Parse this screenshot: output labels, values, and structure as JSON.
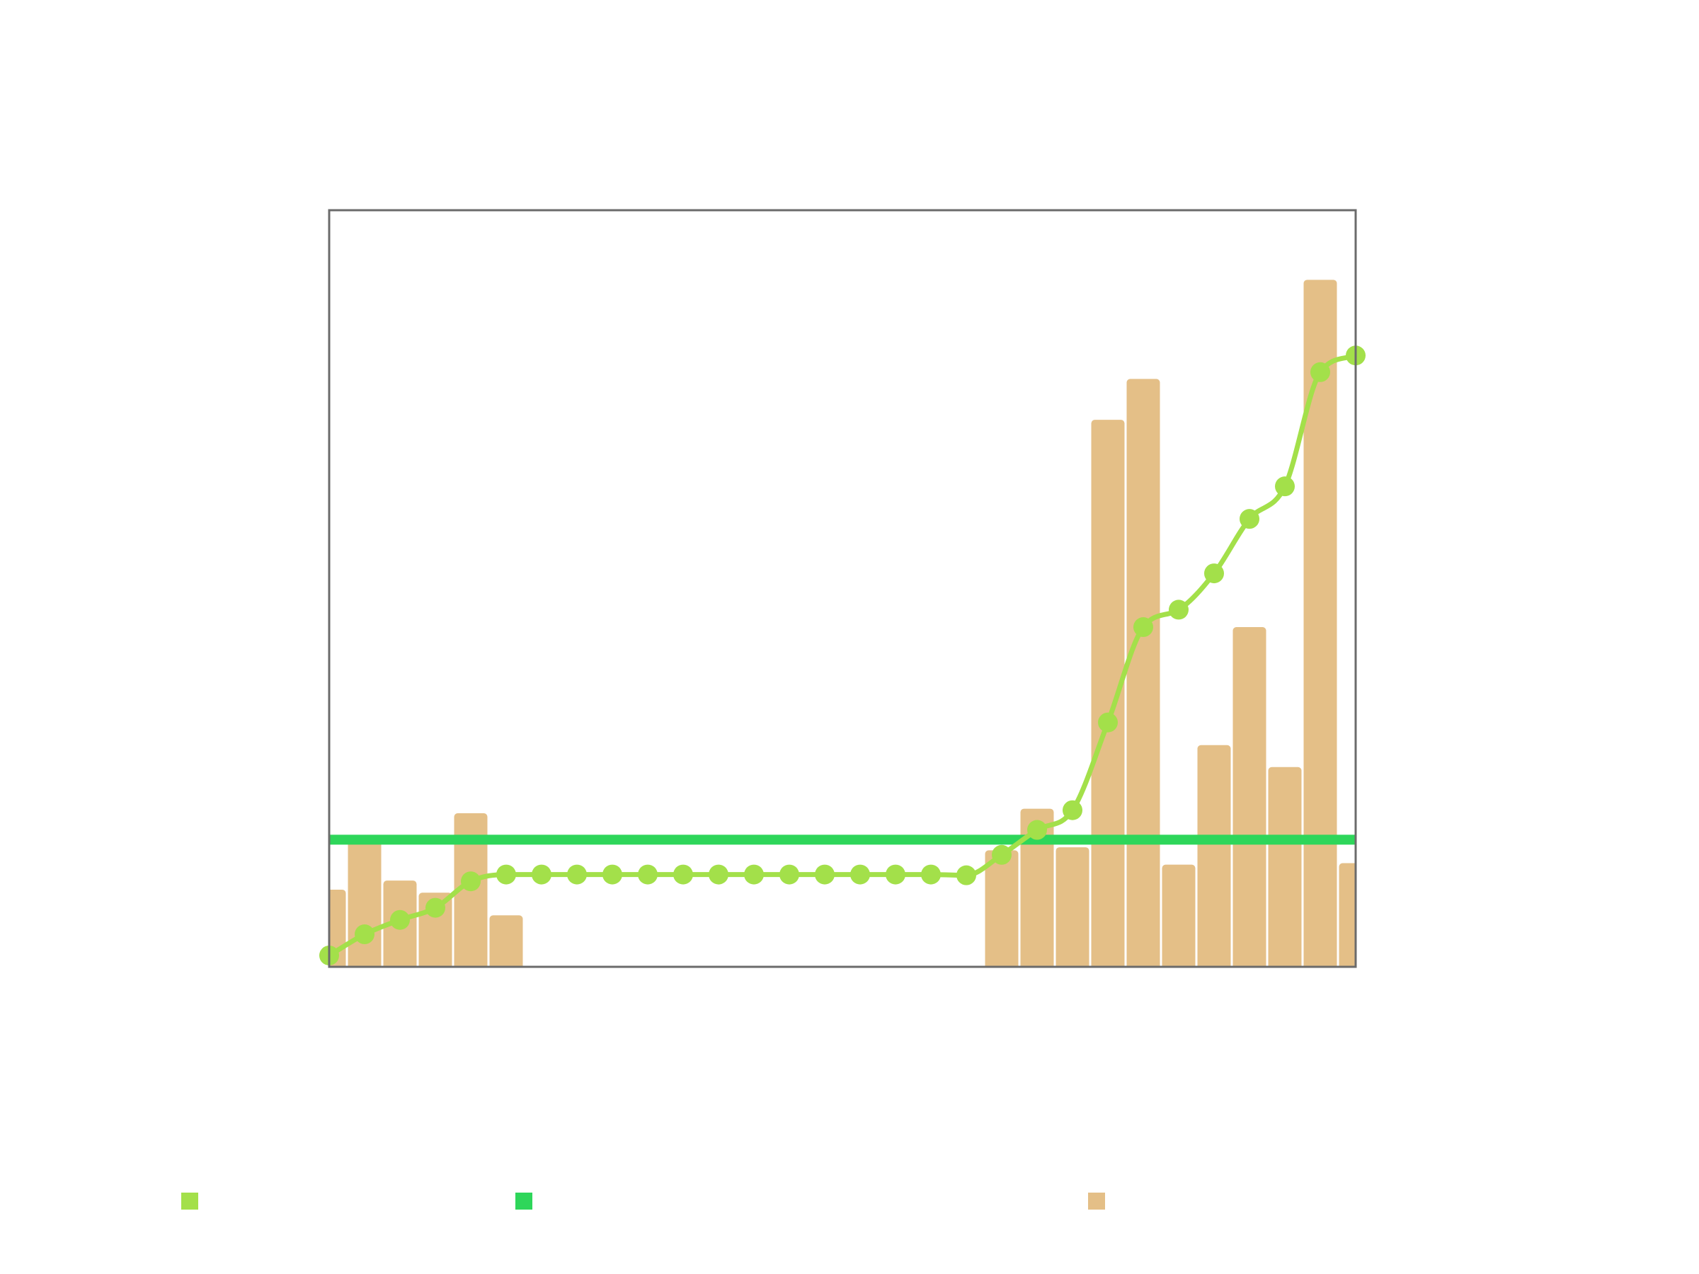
{
  "chart_data": {
    "type": "bar",
    "title": "",
    "xlabel": "",
    "ylabel": "",
    "grid": false,
    "legend_position": "bottom",
    "xlim": [
      0,
      29
    ],
    "ylim": [
      0,
      100
    ],
    "x": [
      0,
      1,
      2,
      3,
      4,
      5,
      6,
      7,
      8,
      9,
      10,
      11,
      12,
      13,
      14,
      15,
      16,
      17,
      18,
      19,
      20,
      21,
      22,
      23,
      24,
      25,
      26,
      27,
      28,
      29
    ],
    "series": [
      {
        "kind": "line",
        "color": "#a3e04a",
        "marker": "circle",
        "smooth": true,
        "values": [
          1.5,
          4.3,
          6.2,
          7.8,
          11.3,
          12.2,
          12.2,
          12.2,
          12.2,
          12.2,
          12.2,
          12.2,
          12.2,
          12.2,
          12.2,
          12.2,
          12.2,
          12.2,
          12.1,
          14.8,
          18.1,
          20.7,
          32.3,
          44.9,
          47.2,
          52.0,
          59.2,
          63.5,
          78.6,
          80.8
        ]
      },
      {
        "kind": "hline",
        "color": "#2ed65a",
        "value": 16.8
      },
      {
        "kind": "bar",
        "color": "#e4bf87",
        "values": [
          10.2,
          17.0,
          11.4,
          9.8,
          20.3,
          6.8,
          0,
          0,
          0,
          0,
          0,
          0,
          0,
          0,
          0,
          0,
          0,
          0,
          0,
          15.4,
          20.9,
          15.8,
          72.3,
          77.7,
          13.5,
          29.3,
          44.9,
          26.4,
          90.8,
          13.7
        ]
      }
    ]
  }
}
